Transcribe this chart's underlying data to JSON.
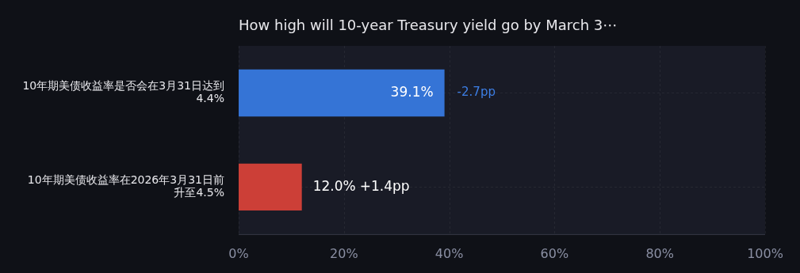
{
  "chart_data": {
    "type": "bar",
    "orientation": "horizontal",
    "title": "How high will 10-year Treasury yield go by March 3⋯",
    "categories": [
      "10年期美债收益率是否会在3月31日达到4.4%",
      "10年期美债收益率在2026年3月31日前升至4.5%"
    ],
    "values": [
      39.1,
      12.0
    ],
    "colors": [
      "#3574d6",
      "#cc3f37"
    ],
    "value_labels": [
      "39.1%",
      "12.0%"
    ],
    "annotations": [
      "-2.7pp",
      "+1.4pp"
    ],
    "xlim": [
      0,
      100
    ],
    "xticks": [
      {
        "value": 0,
        "label": "0%"
      },
      {
        "value": 20,
        "label": "20%"
      },
      {
        "value": 40,
        "label": "40%"
      },
      {
        "value": 60,
        "label": "60%"
      },
      {
        "value": 80,
        "label": "80%"
      },
      {
        "value": 100,
        "label": "100%"
      }
    ],
    "grid": true
  }
}
